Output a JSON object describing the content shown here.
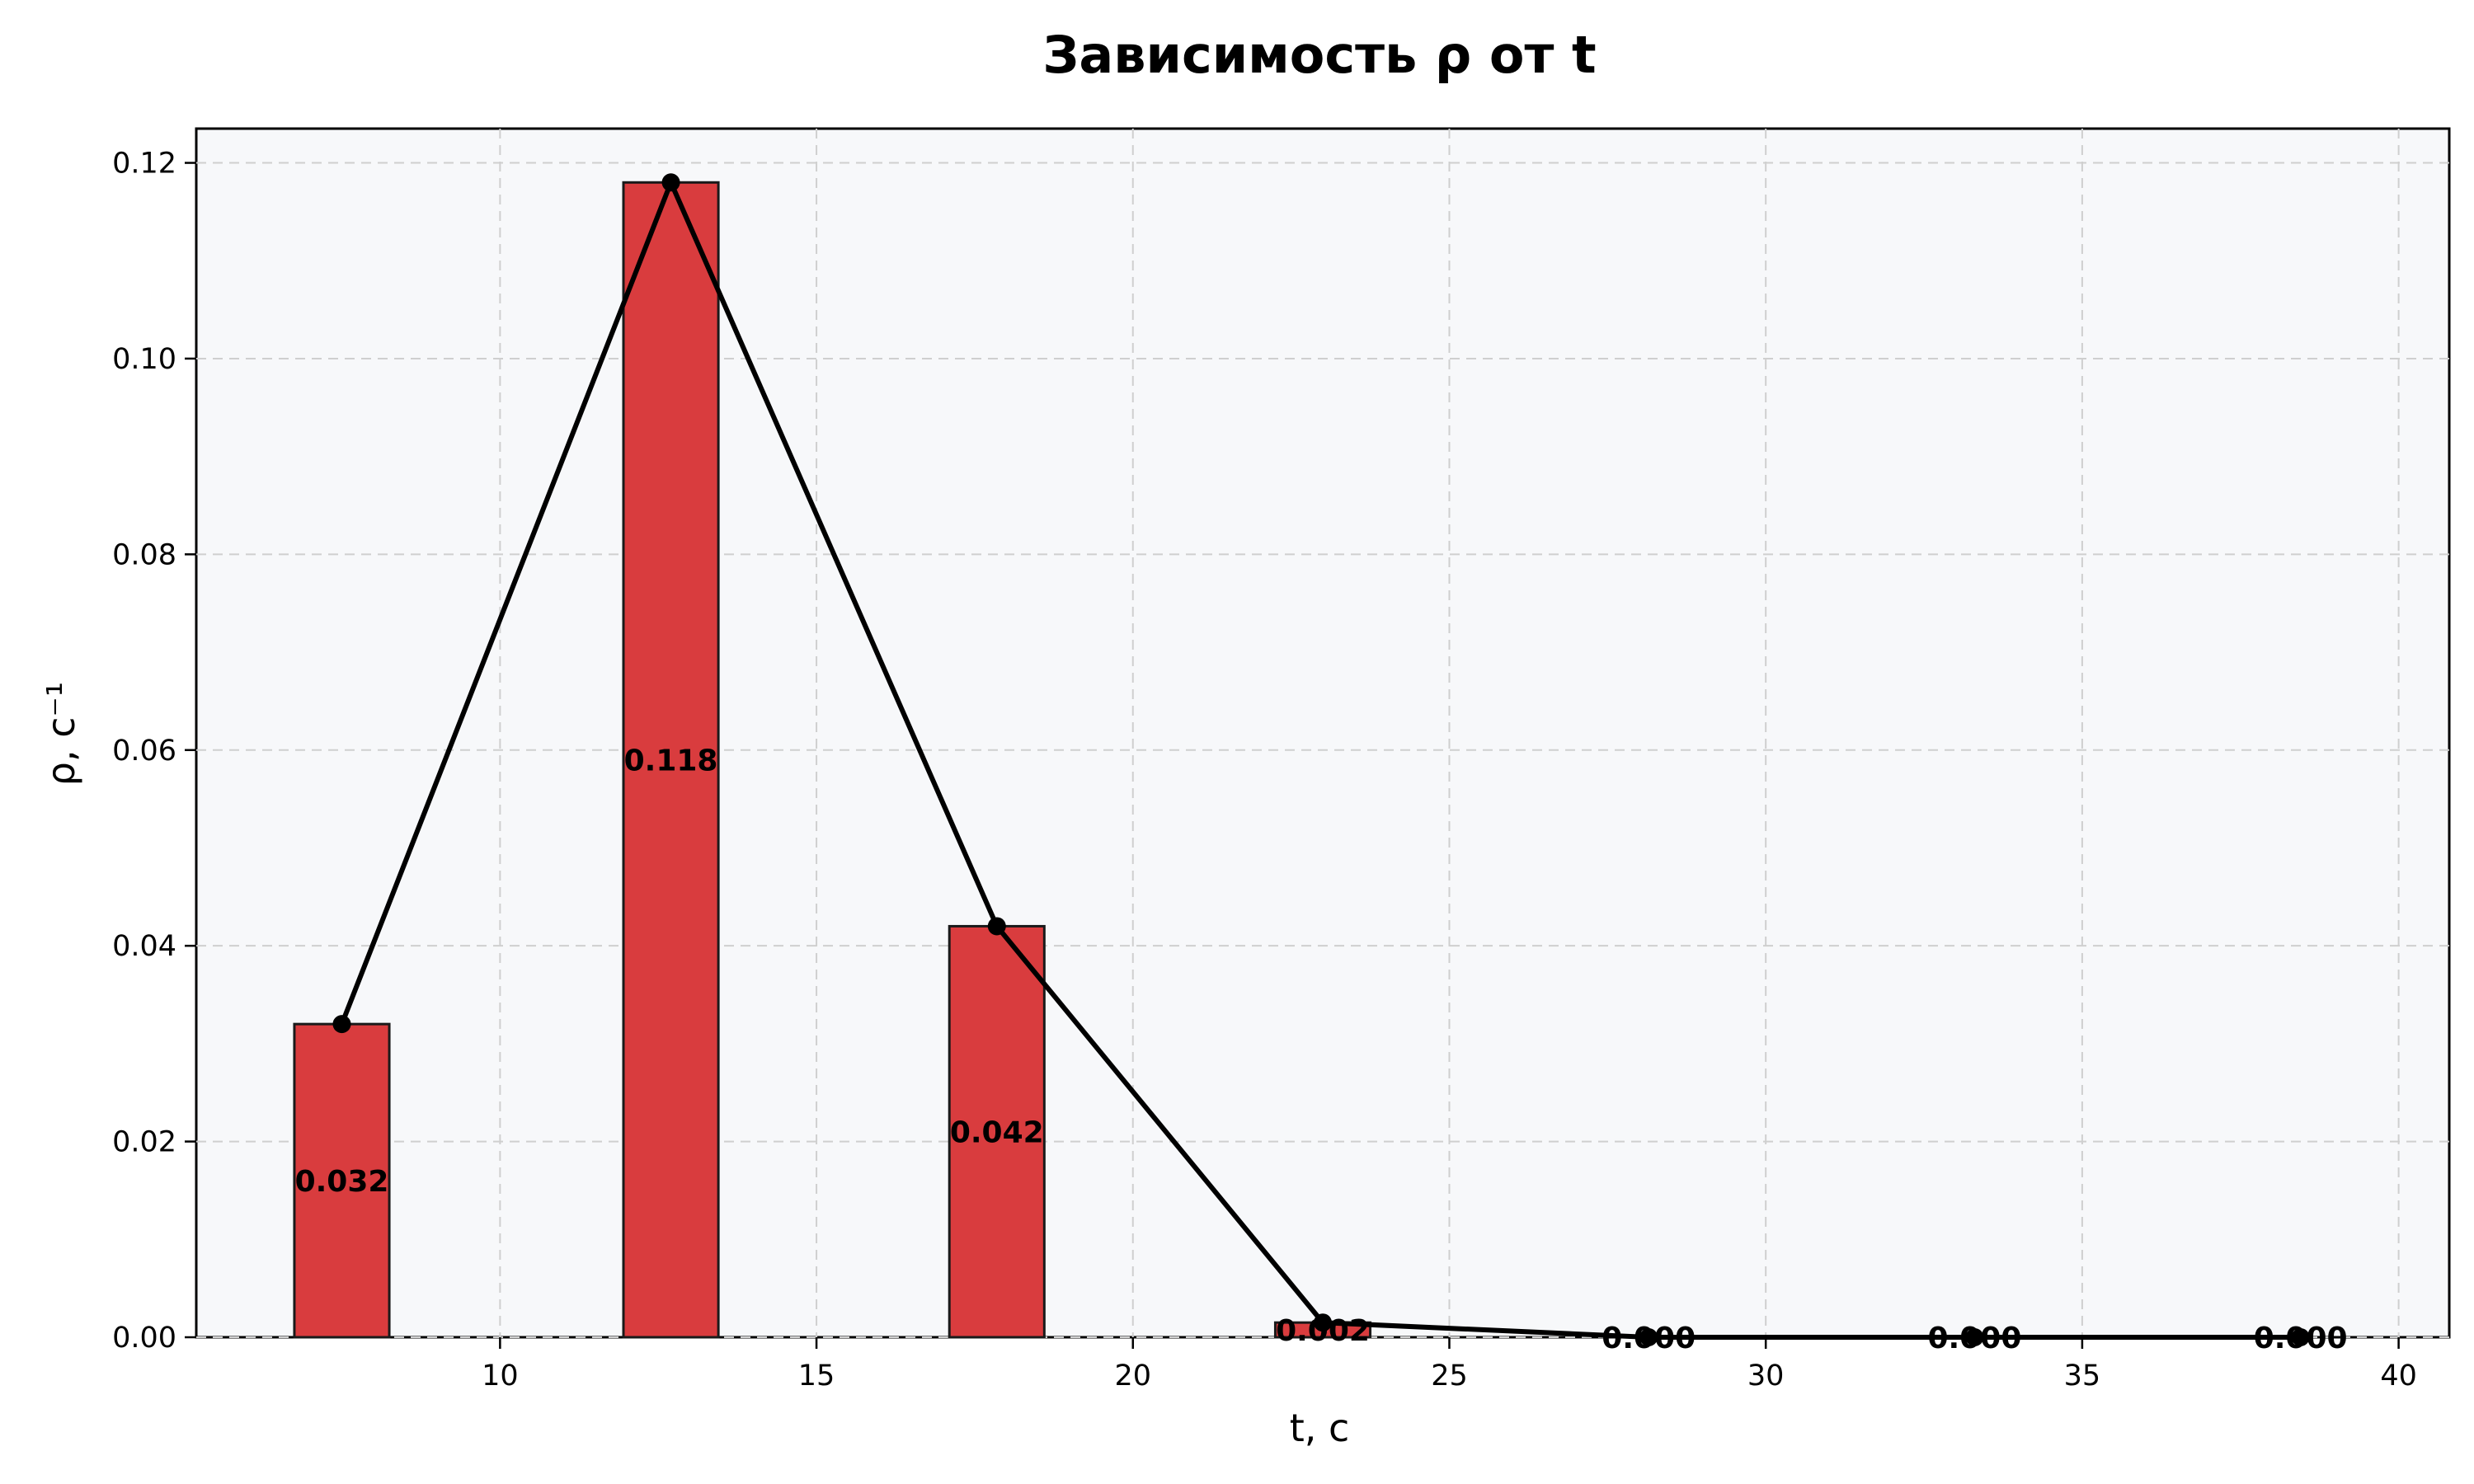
{
  "chart_data": {
    "type": "bar",
    "title": "Зависимость ρ от t",
    "xlabel": "t, c",
    "ylabel": "ρ, c⁻¹",
    "x": [
      7.5,
      12.7,
      17.85,
      23.0,
      28.15,
      33.3,
      38.45
    ],
    "values": [
      0.032,
      0.118,
      0.042,
      0.0015,
      0.0,
      0.0,
      0.0
    ],
    "data_labels": [
      "0.032",
      "0.118",
      "0.042",
      "0.002",
      "0.000",
      "0.000",
      "0.000"
    ],
    "bar_width": 1.5,
    "line_overlay": true,
    "xlim": [
      5.2,
      40.8
    ],
    "ylim": [
      0,
      0.1235
    ],
    "xticks": [
      10,
      15,
      20,
      25,
      30,
      35,
      40
    ],
    "xtick_labels": [
      "10",
      "15",
      "20",
      "25",
      "30",
      "35",
      "40"
    ],
    "yticks": [
      0,
      0.02,
      0.04,
      0.06,
      0.08,
      0.1,
      0.12
    ],
    "ytick_labels": [
      "0.00",
      "0.02",
      "0.04",
      "0.06",
      "0.08",
      "0.10",
      "0.12"
    ],
    "grid": true,
    "colors": {
      "bar": "#d93c3e",
      "line": "#000000",
      "plot_background": "#f7f8fa"
    }
  }
}
